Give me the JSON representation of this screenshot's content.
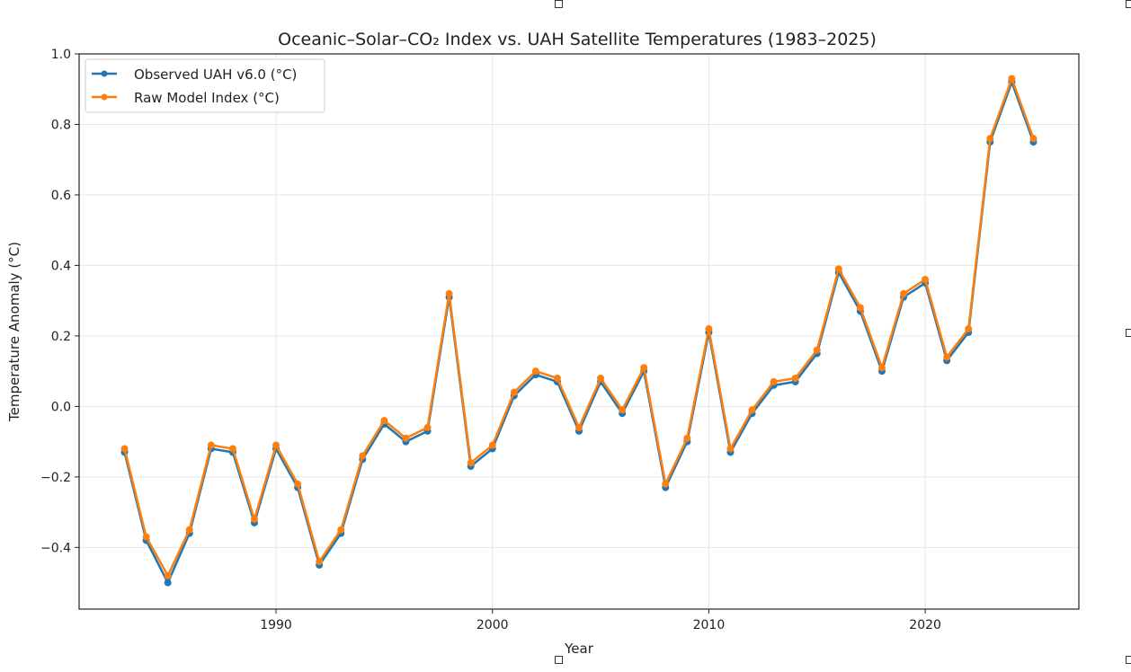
{
  "chart_data": {
    "type": "line",
    "title": "Oceanic–Solar–CO₂ Index vs. UAH Satellite Temperatures (1983–2025)",
    "xlabel": "Year",
    "ylabel": "Temperature Anomaly (°C)",
    "xlim": [
      1980.9,
      2027.1
    ],
    "ylim": [
      -0.575,
      1.0
    ],
    "xticks": [
      1990,
      2000,
      2010,
      2020
    ],
    "yticks": [
      -0.4,
      -0.2,
      0.0,
      0.2,
      0.4,
      0.6,
      0.8,
      1.0
    ],
    "ytick_labels": [
      "−0.4",
      "−0.2",
      "0.0",
      "0.2",
      "0.4",
      "0.6",
      "0.8",
      "1.0"
    ],
    "grid": true,
    "legend_placement": "top-left",
    "x": [
      1983,
      1984,
      1985,
      1986,
      1987,
      1988,
      1989,
      1990,
      1991,
      1992,
      1993,
      1994,
      1995,
      1996,
      1997,
      1998,
      1999,
      2000,
      2001,
      2002,
      2003,
      2004,
      2005,
      2006,
      2007,
      2008,
      2009,
      2010,
      2011,
      2012,
      2013,
      2014,
      2015,
      2016,
      2017,
      2018,
      2019,
      2020,
      2021,
      2022,
      2023,
      2024,
      2025
    ],
    "series": [
      {
        "name": "Observed UAH v6.0 (°C)",
        "color": "#1f77b4",
        "values": [
          -0.13,
          -0.38,
          -0.5,
          -0.36,
          -0.12,
          -0.13,
          -0.33,
          -0.12,
          -0.23,
          -0.45,
          -0.36,
          -0.15,
          -0.05,
          -0.1,
          -0.07,
          0.31,
          -0.17,
          -0.12,
          0.03,
          0.09,
          0.07,
          -0.07,
          0.07,
          -0.02,
          0.1,
          -0.23,
          -0.1,
          0.21,
          -0.13,
          -0.02,
          0.06,
          0.07,
          0.15,
          0.38,
          0.27,
          0.1,
          0.31,
          0.35,
          0.13,
          0.21,
          0.75,
          0.92,
          0.75
        ]
      },
      {
        "name": "Raw Model Index (°C)",
        "color": "#ff7f0e",
        "values": [
          -0.12,
          -0.37,
          -0.48,
          -0.35,
          -0.11,
          -0.12,
          -0.32,
          -0.11,
          -0.22,
          -0.44,
          -0.35,
          -0.14,
          -0.04,
          -0.09,
          -0.06,
          0.32,
          -0.16,
          -0.11,
          0.04,
          0.1,
          0.08,
          -0.06,
          0.08,
          -0.01,
          0.11,
          -0.22,
          -0.09,
          0.22,
          -0.12,
          -0.01,
          0.07,
          0.08,
          0.16,
          0.39,
          0.28,
          0.11,
          0.32,
          0.36,
          0.14,
          0.22,
          0.76,
          0.93,
          0.76
        ]
      }
    ]
  }
}
